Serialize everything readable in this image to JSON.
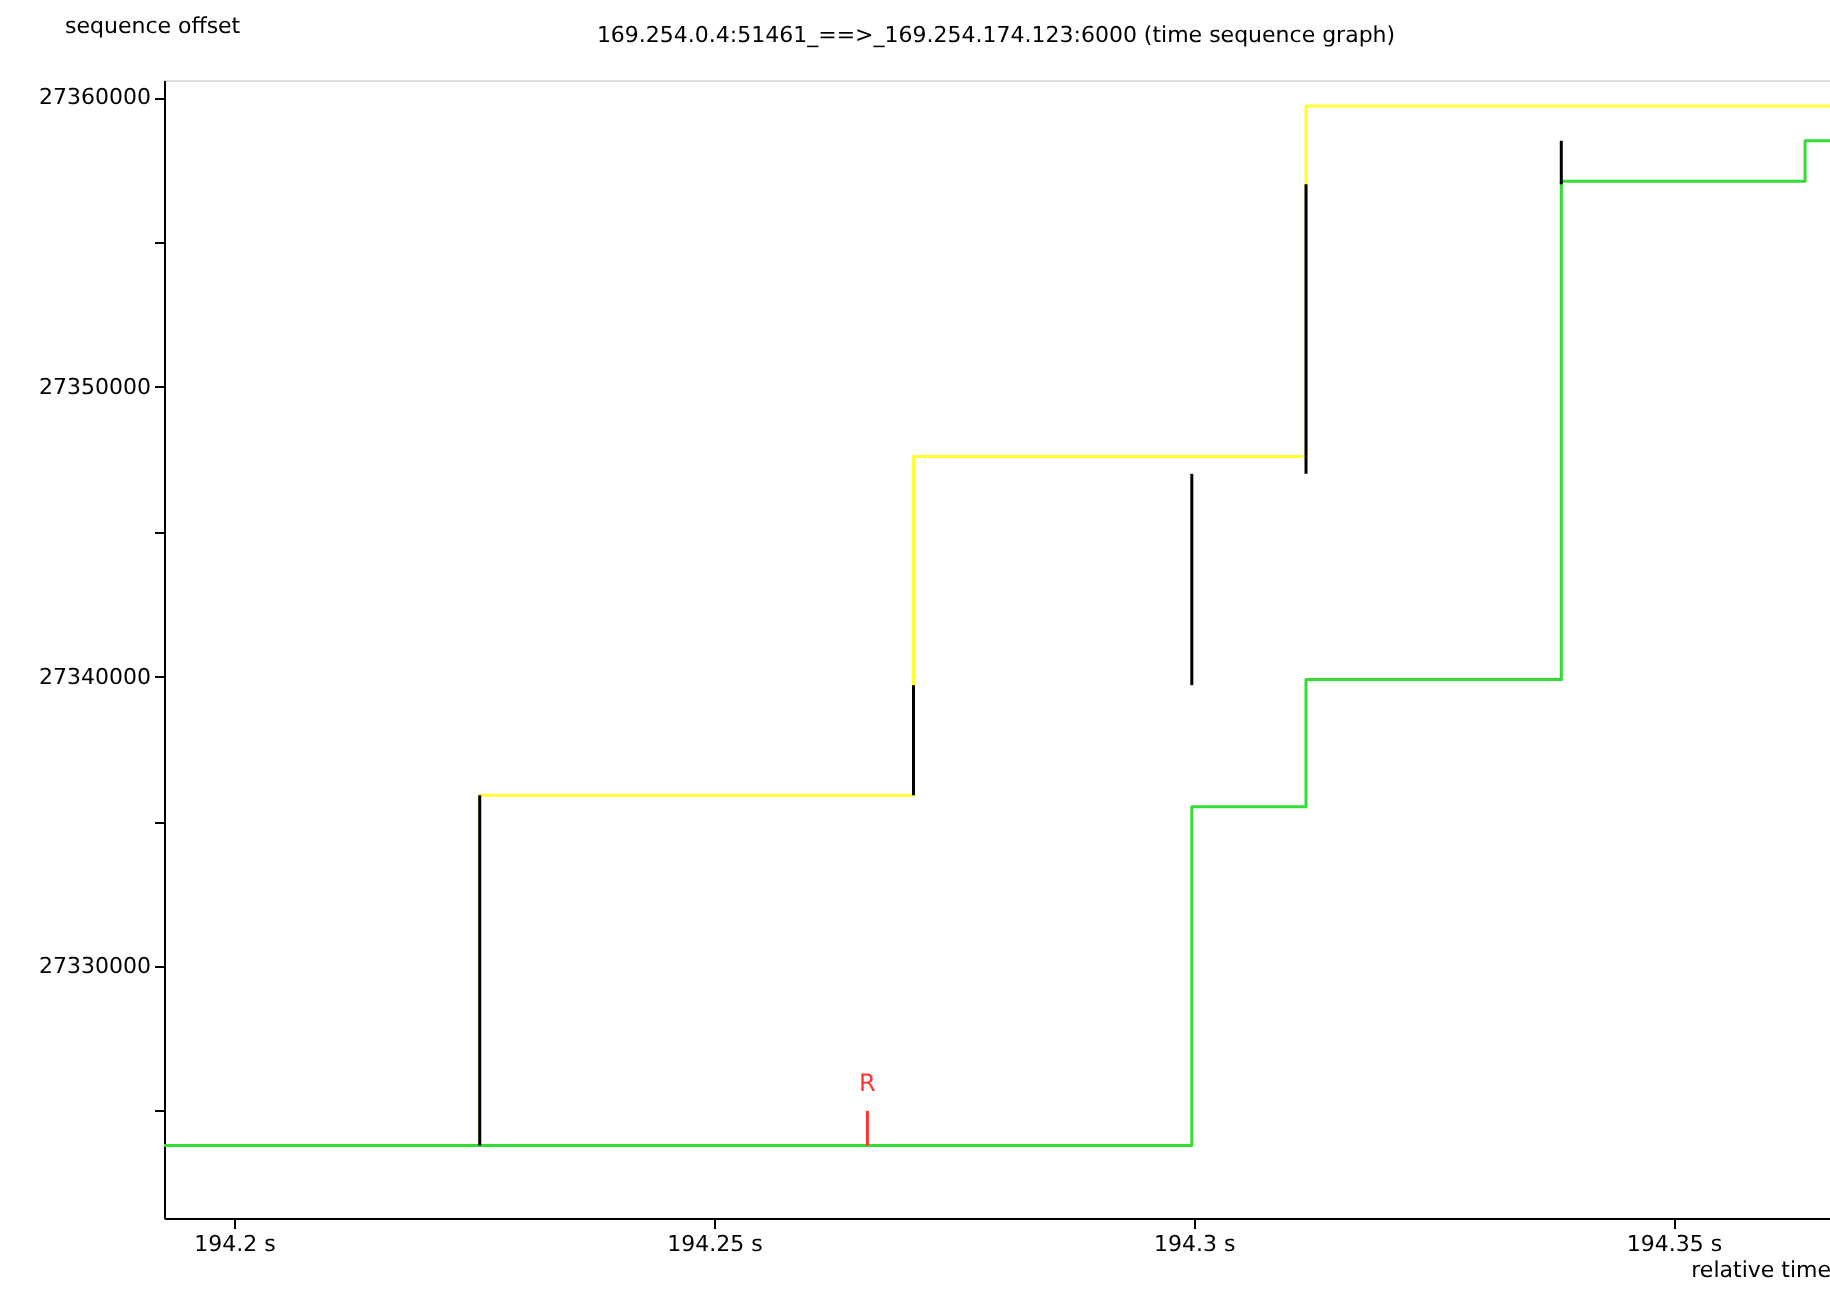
{
  "chart_data": {
    "type": "step",
    "title": "169.254.0.4:51461_==>_169.254.174.123:6000 (time sequence graph)",
    "xlabel": "relative time",
    "ylabel": "sequence offset",
    "xlim": [
      194.1927,
      194.3663
    ],
    "ylim": [
      27321300,
      27360600
    ],
    "xticks": [
      {
        "value": 194.2,
        "label": "194.2 s"
      },
      {
        "value": 194.25,
        "label": "194.25 s"
      },
      {
        "value": 194.3,
        "label": "194.3 s"
      },
      {
        "value": 194.35,
        "label": "194.35 s"
      }
    ],
    "yticks": [
      {
        "value": 27325000,
        "label": null
      },
      27330000,
      {
        "value": 27335000,
        "label": null
      },
      27340000,
      {
        "value": 27345000,
        "label": null
      },
      27350000,
      {
        "value": 27355000,
        "label": null
      },
      27360000
    ],
    "grid": false,
    "series": [
      {
        "type": "step",
        "color": "#ffff33",
        "x": [
          194.2256,
          194.2256,
          194.2708,
          194.3117,
          194.3663
        ],
        "values": [
          27323800,
          27335900,
          27347600,
          27359700,
          27359700
        ]
      },
      {
        "type": "step",
        "color": "#33dd33",
        "x": [
          194.1927,
          194.2998,
          194.3117,
          194.3383,
          194.3637,
          194.3663
        ],
        "values": [
          27323800,
          27335500,
          27339900,
          27357100,
          27358500,
          27358500
        ]
      },
      {
        "type": "line",
        "color": "#000000",
        "x": [
          194.2256,
          194.2256
        ],
        "values": [
          27323800,
          27335900
        ]
      },
      {
        "type": "line",
        "color": "#000000",
        "x": [
          194.2708,
          194.2708
        ],
        "values": [
          27335900,
          27339700
        ]
      },
      {
        "type": "line",
        "color": "#000000",
        "x": [
          194.2998,
          194.2998
        ],
        "values": [
          27339700,
          27347000
        ]
      },
      {
        "type": "line",
        "color": "#000000",
        "x": [
          194.3117,
          194.3117
        ],
        "values": [
          27347000,
          27357000
        ]
      },
      {
        "type": "line",
        "color": "#000000",
        "x": [
          194.3383,
          194.3383
        ],
        "values": [
          27357000,
          27358500
        ]
      },
      {
        "type": "line",
        "color": "#ff3333",
        "x": [
          194.266,
          194.266
        ],
        "values": [
          27323800,
          27325000
        ]
      }
    ],
    "annotations": [
      {
        "text": "R",
        "x": 194.266,
        "y": 27325000
      }
    ]
  }
}
